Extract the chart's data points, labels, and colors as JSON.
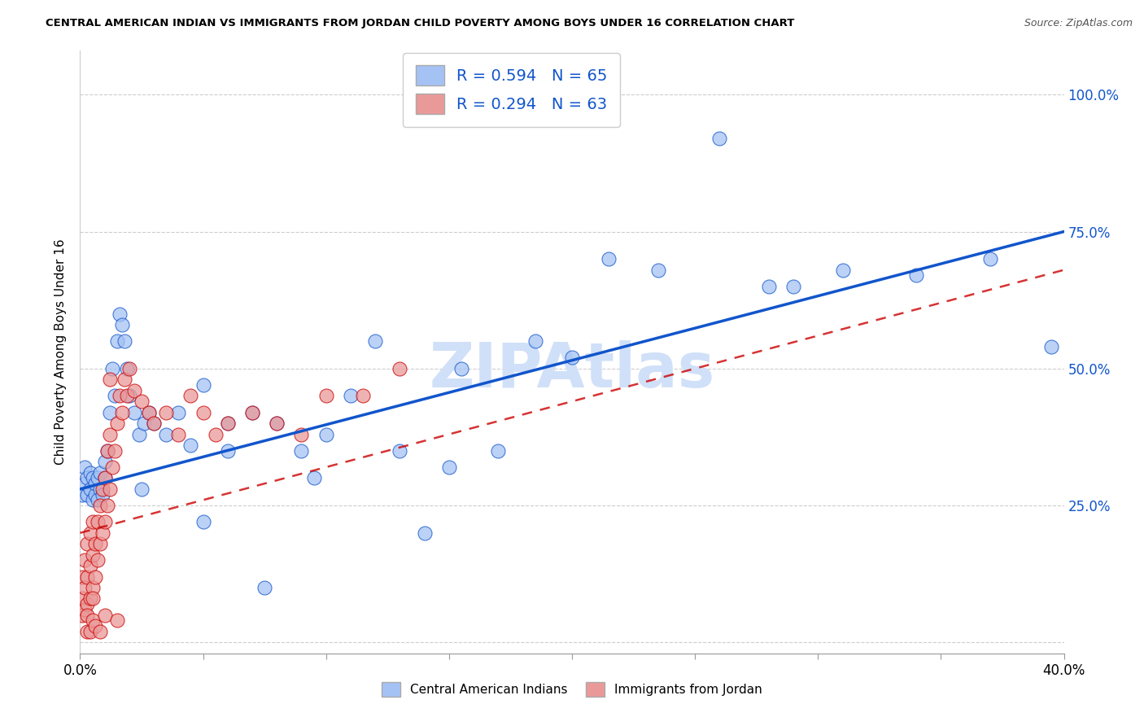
{
  "title": "CENTRAL AMERICAN INDIAN VS IMMIGRANTS FROM JORDAN CHILD POVERTY AMONG BOYS UNDER 16 CORRELATION CHART",
  "source": "Source: ZipAtlas.com",
  "ylabel": "Child Poverty Among Boys Under 16",
  "r1": 0.594,
  "n1": 65,
  "r2": 0.294,
  "n2": 63,
  "legend1_label": "Central American Indians",
  "legend2_label": "Immigrants from Jordan",
  "xlim": [
    0.0,
    0.4
  ],
  "ylim": [
    -0.02,
    1.08
  ],
  "color_blue": "#a4c2f4",
  "color_pink": "#ea9999",
  "color_blue_line": "#1155cc",
  "color_pink_line": "#cc0000",
  "watermark": "ZIPAtlas",
  "watermark_color": "#d0e0f8",
  "blue_x": [
    0.001,
    0.002,
    0.002,
    0.003,
    0.003,
    0.004,
    0.004,
    0.005,
    0.005,
    0.006,
    0.006,
    0.007,
    0.007,
    0.008,
    0.008,
    0.009,
    0.01,
    0.01,
    0.011,
    0.012,
    0.013,
    0.014,
    0.015,
    0.016,
    0.017,
    0.018,
    0.019,
    0.02,
    0.022,
    0.024,
    0.026,
    0.028,
    0.03,
    0.035,
    0.04,
    0.045,
    0.05,
    0.06,
    0.07,
    0.08,
    0.09,
    0.1,
    0.11,
    0.12,
    0.13,
    0.14,
    0.155,
    0.17,
    0.185,
    0.2,
    0.215,
    0.235,
    0.26,
    0.28,
    0.31,
    0.34,
    0.37,
    0.395,
    0.06,
    0.095,
    0.15,
    0.29,
    0.025,
    0.05,
    0.075
  ],
  "blue_y": [
    0.27,
    0.29,
    0.32,
    0.27,
    0.3,
    0.28,
    0.31,
    0.26,
    0.3,
    0.27,
    0.29,
    0.26,
    0.3,
    0.28,
    0.31,
    0.27,
    0.3,
    0.33,
    0.35,
    0.42,
    0.5,
    0.45,
    0.55,
    0.6,
    0.58,
    0.55,
    0.5,
    0.45,
    0.42,
    0.38,
    0.4,
    0.42,
    0.4,
    0.38,
    0.42,
    0.36,
    0.47,
    0.4,
    0.42,
    0.4,
    0.35,
    0.38,
    0.45,
    0.55,
    0.35,
    0.2,
    0.5,
    0.35,
    0.55,
    0.52,
    0.7,
    0.68,
    0.92,
    0.65,
    0.68,
    0.67,
    0.7,
    0.54,
    0.35,
    0.3,
    0.32,
    0.65,
    0.28,
    0.22,
    0.1
  ],
  "pink_x": [
    0.001,
    0.001,
    0.001,
    0.002,
    0.002,
    0.002,
    0.003,
    0.003,
    0.003,
    0.004,
    0.004,
    0.004,
    0.005,
    0.005,
    0.005,
    0.006,
    0.006,
    0.007,
    0.007,
    0.008,
    0.008,
    0.009,
    0.009,
    0.01,
    0.01,
    0.011,
    0.011,
    0.012,
    0.012,
    0.013,
    0.014,
    0.015,
    0.016,
    0.017,
    0.018,
    0.019,
    0.02,
    0.022,
    0.025,
    0.028,
    0.03,
    0.035,
    0.04,
    0.045,
    0.05,
    0.055,
    0.06,
    0.07,
    0.08,
    0.09,
    0.1,
    0.115,
    0.13,
    0.003,
    0.003,
    0.004,
    0.005,
    0.005,
    0.006,
    0.008,
    0.01,
    0.012,
    0.015
  ],
  "pink_y": [
    0.05,
    0.08,
    0.12,
    0.06,
    0.1,
    0.15,
    0.07,
    0.12,
    0.18,
    0.08,
    0.14,
    0.2,
    0.1,
    0.16,
    0.22,
    0.12,
    0.18,
    0.15,
    0.22,
    0.18,
    0.25,
    0.2,
    0.28,
    0.22,
    0.3,
    0.25,
    0.35,
    0.28,
    0.38,
    0.32,
    0.35,
    0.4,
    0.45,
    0.42,
    0.48,
    0.45,
    0.5,
    0.46,
    0.44,
    0.42,
    0.4,
    0.42,
    0.38,
    0.45,
    0.42,
    0.38,
    0.4,
    0.42,
    0.4,
    0.38,
    0.45,
    0.45,
    0.5,
    0.02,
    0.05,
    0.02,
    0.04,
    0.08,
    0.03,
    0.02,
    0.05,
    0.48,
    0.04
  ]
}
